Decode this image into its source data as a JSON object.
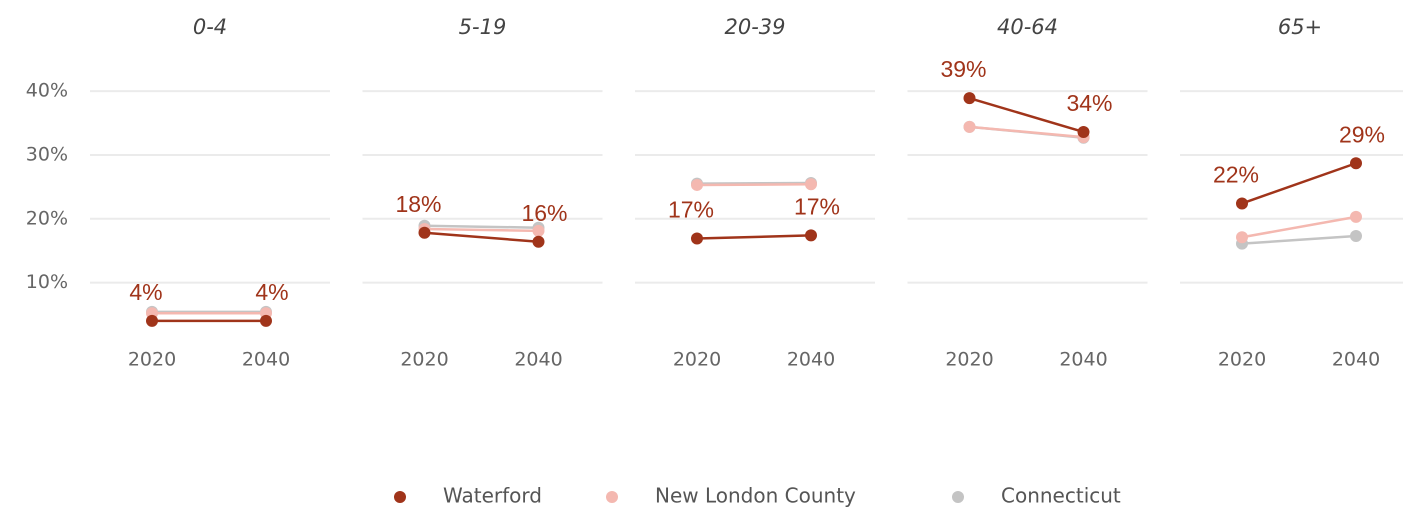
{
  "chart_data": [
    {
      "type": "line",
      "title": "0-4",
      "categories": [
        "2020",
        "2040"
      ],
      "series": [
        {
          "name": "Waterford",
          "color": "#a0341a",
          "values": [
            4,
            4
          ],
          "value_labels": [
            "4%",
            "4%"
          ]
        },
        {
          "name": "New London County",
          "color": "#f4b8b0",
          "values": [
            5.2,
            5.2
          ]
        },
        {
          "name": "Connecticut",
          "color": "#c4c4c4",
          "values": [
            5.4,
            5.4
          ]
        }
      ],
      "ylim": [
        1,
        43
      ],
      "yticks": [
        {
          "value": 10,
          "label": "10%"
        },
        {
          "value": 20,
          "label": "20%"
        },
        {
          "value": 30,
          "label": "30%"
        },
        {
          "value": 40,
          "label": "40%"
        }
      ],
      "grid": true
    },
    {
      "type": "line",
      "title": "5-19",
      "categories": [
        "2020",
        "2040"
      ],
      "series": [
        {
          "name": "Waterford",
          "color": "#a0341a",
          "values": [
            17.8,
            16.4
          ],
          "value_labels": [
            "18%",
            "16%"
          ]
        },
        {
          "name": "New London County",
          "color": "#f4b8b0",
          "values": [
            18.4,
            18.1
          ]
        },
        {
          "name": "Connecticut",
          "color": "#c4c4c4",
          "values": [
            18.9,
            18.6
          ]
        }
      ],
      "ylim": [
        1,
        43
      ],
      "yticks": [
        10,
        20,
        30,
        40
      ],
      "grid": true
    },
    {
      "type": "line",
      "title": "20-39",
      "categories": [
        "2020",
        "2040"
      ],
      "series": [
        {
          "name": "Waterford",
          "color": "#a0341a",
          "values": [
            16.9,
            17.4
          ],
          "value_labels": [
            "17%",
            "17%"
          ]
        },
        {
          "name": "New London County",
          "color": "#f4b8b0",
          "values": [
            25.3,
            25.4
          ]
        },
        {
          "name": "Connecticut",
          "color": "#c4c4c4",
          "values": [
            25.5,
            25.6
          ]
        }
      ],
      "ylim": [
        1,
        43
      ],
      "yticks": [
        10,
        20,
        30,
        40
      ],
      "grid": true
    },
    {
      "type": "line",
      "title": "40-64",
      "categories": [
        "2020",
        "2040"
      ],
      "series": [
        {
          "name": "Waterford",
          "color": "#a0341a",
          "values": [
            38.9,
            33.6
          ],
          "value_labels": [
            "39%",
            "34%"
          ]
        },
        {
          "name": "New London County",
          "color": "#f4b8b0",
          "values": [
            34.4,
            32.8
          ]
        },
        {
          "name": "Connecticut",
          "color": "#c4c4c4",
          "values": [
            34.4,
            32.7
          ]
        }
      ],
      "ylim": [
        1,
        43
      ],
      "yticks": [
        10,
        20,
        30,
        40
      ],
      "grid": true
    },
    {
      "type": "line",
      "title": "65+",
      "categories": [
        "2020",
        "2040"
      ],
      "series": [
        {
          "name": "Waterford",
          "color": "#a0341a",
          "values": [
            22.4,
            28.7
          ],
          "value_labels": [
            "22%",
            "29%"
          ]
        },
        {
          "name": "New London County",
          "color": "#f4b8b0",
          "values": [
            17.1,
            20.3
          ]
        },
        {
          "name": "Connecticut",
          "color": "#c4c4c4",
          "values": [
            16.1,
            17.3
          ]
        }
      ],
      "ylim": [
        1,
        43
      ],
      "yticks": [
        10,
        20,
        30,
        40
      ],
      "grid": true
    }
  ]
}
